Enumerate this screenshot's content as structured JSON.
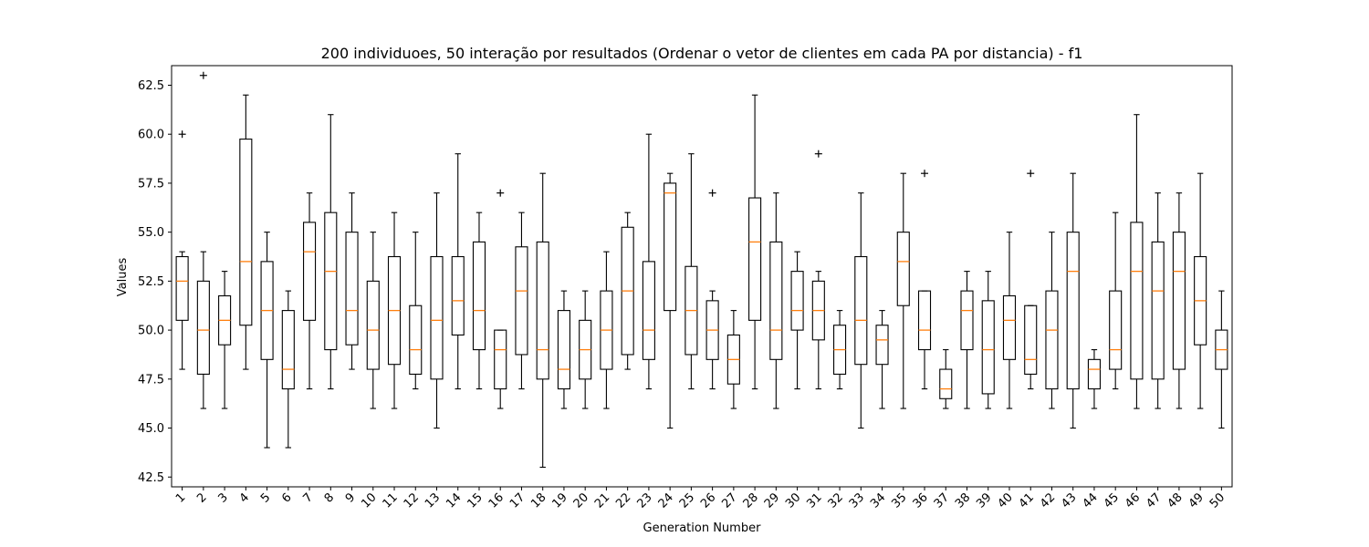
{
  "chart_data": {
    "type": "boxplot",
    "title": "200 individuoes, 50 interação por resultados (Ordenar o vetor de clientes em cada PA por distancia) - f1",
    "xlabel": "Generation Number",
    "ylabel": "Values",
    "ylim": [
      42,
      63.5
    ],
    "yticks": [
      42.5,
      45.0,
      47.5,
      50.0,
      52.5,
      55.0,
      57.5,
      60.0,
      62.5
    ],
    "ytick_labels": [
      "42.5",
      "45.0",
      "47.5",
      "50.0",
      "52.5",
      "55.0",
      "57.5",
      "60.0",
      "62.5"
    ],
    "grid": false,
    "colors": {
      "box": "#000000",
      "median": "#ff7f0e"
    },
    "categories": [
      "1",
      "2",
      "3",
      "4",
      "5",
      "6",
      "7",
      "8",
      "9",
      "10",
      "11",
      "12",
      "13",
      "14",
      "15",
      "16",
      "17",
      "18",
      "19",
      "20",
      "21",
      "22",
      "23",
      "24",
      "25",
      "26",
      "27",
      "28",
      "29",
      "30",
      "31",
      "32",
      "33",
      "34",
      "35",
      "36",
      "37",
      "38",
      "39",
      "40",
      "41",
      "42",
      "43",
      "44",
      "45",
      "46",
      "47",
      "48",
      "49",
      "50"
    ],
    "boxes": [
      {
        "x": "1",
        "whislo": 48,
        "q1": 50.5,
        "med": 52.5,
        "q3": 53.75,
        "whishi": 54,
        "fliers": [
          60
        ]
      },
      {
        "x": "2",
        "whislo": 46,
        "q1": 47.75,
        "med": 50,
        "q3": 52.5,
        "whishi": 54,
        "fliers": [
          63
        ]
      },
      {
        "x": "3",
        "whislo": 46,
        "q1": 49.25,
        "med": 50.5,
        "q3": 51.75,
        "whishi": 53,
        "fliers": []
      },
      {
        "x": "4",
        "whislo": 48,
        "q1": 50.25,
        "med": 53.5,
        "q3": 59.75,
        "whishi": 62,
        "fliers": []
      },
      {
        "x": "5",
        "whislo": 44,
        "q1": 48.5,
        "med": 51,
        "q3": 53.5,
        "whishi": 55,
        "fliers": []
      },
      {
        "x": "6",
        "whislo": 44,
        "q1": 47,
        "med": 48,
        "q3": 51,
        "whishi": 52,
        "fliers": []
      },
      {
        "x": "7",
        "whislo": 47,
        "q1": 50.5,
        "med": 54,
        "q3": 55.5,
        "whishi": 57,
        "fliers": []
      },
      {
        "x": "8",
        "whislo": 47,
        "q1": 49,
        "med": 53,
        "q3": 56,
        "whishi": 61,
        "fliers": []
      },
      {
        "x": "9",
        "whislo": 48,
        "q1": 49.25,
        "med": 51,
        "q3": 55,
        "whishi": 57,
        "fliers": []
      },
      {
        "x": "10",
        "whislo": 46,
        "q1": 48,
        "med": 50,
        "q3": 52.5,
        "whishi": 55,
        "fliers": []
      },
      {
        "x": "11",
        "whislo": 46,
        "q1": 48.25,
        "med": 51,
        "q3": 53.75,
        "whishi": 56,
        "fliers": []
      },
      {
        "x": "12",
        "whislo": 47,
        "q1": 47.75,
        "med": 49,
        "q3": 51.25,
        "whishi": 55,
        "fliers": []
      },
      {
        "x": "13",
        "whislo": 45,
        "q1": 47.5,
        "med": 50.5,
        "q3": 53.75,
        "whishi": 57,
        "fliers": []
      },
      {
        "x": "14",
        "whislo": 47,
        "q1": 49.75,
        "med": 51.5,
        "q3": 53.75,
        "whishi": 59,
        "fliers": []
      },
      {
        "x": "15",
        "whislo": 47,
        "q1": 49,
        "med": 51,
        "q3": 54.5,
        "whishi": 56,
        "fliers": []
      },
      {
        "x": "16",
        "whislo": 46,
        "q1": 47,
        "med": 49,
        "q3": 50,
        "whishi": 50,
        "fliers": [
          57
        ]
      },
      {
        "x": "17",
        "whislo": 47,
        "q1": 48.75,
        "med": 52,
        "q3": 54.25,
        "whishi": 56,
        "fliers": []
      },
      {
        "x": "18",
        "whislo": 43,
        "q1": 47.5,
        "med": 49,
        "q3": 54.5,
        "whishi": 58,
        "fliers": []
      },
      {
        "x": "19",
        "whislo": 46,
        "q1": 47,
        "med": 48,
        "q3": 51,
        "whishi": 52,
        "fliers": []
      },
      {
        "x": "20",
        "whislo": 46,
        "q1": 47.5,
        "med": 49,
        "q3": 50.5,
        "whishi": 52,
        "fliers": []
      },
      {
        "x": "21",
        "whislo": 46,
        "q1": 48,
        "med": 50,
        "q3": 52,
        "whishi": 54,
        "fliers": []
      },
      {
        "x": "22",
        "whislo": 48,
        "q1": 48.75,
        "med": 52,
        "q3": 55.25,
        "whishi": 56,
        "fliers": []
      },
      {
        "x": "23",
        "whislo": 47,
        "q1": 48.5,
        "med": 50,
        "q3": 53.5,
        "whishi": 60,
        "fliers": []
      },
      {
        "x": "24",
        "whislo": 45,
        "q1": 51,
        "med": 57,
        "q3": 57.5,
        "whishi": 58,
        "fliers": []
      },
      {
        "x": "25",
        "whislo": 47,
        "q1": 48.75,
        "med": 51,
        "q3": 53.25,
        "whishi": 59,
        "fliers": []
      },
      {
        "x": "26",
        "whislo": 47,
        "q1": 48.5,
        "med": 50,
        "q3": 51.5,
        "whishi": 52,
        "fliers": [
          57
        ]
      },
      {
        "x": "27",
        "whislo": 46,
        "q1": 47.25,
        "med": 48.5,
        "q3": 49.75,
        "whishi": 51,
        "fliers": []
      },
      {
        "x": "28",
        "whislo": 47,
        "q1": 50.5,
        "med": 54.5,
        "q3": 56.75,
        "whishi": 62,
        "fliers": []
      },
      {
        "x": "29",
        "whislo": 46,
        "q1": 48.5,
        "med": 50,
        "q3": 54.5,
        "whishi": 57,
        "fliers": []
      },
      {
        "x": "30",
        "whislo": 47,
        "q1": 50,
        "med": 51,
        "q3": 53,
        "whishi": 54,
        "fliers": []
      },
      {
        "x": "31",
        "whislo": 47,
        "q1": 49.5,
        "med": 51,
        "q3": 52.5,
        "whishi": 53,
        "fliers": [
          59
        ]
      },
      {
        "x": "32",
        "whislo": 47,
        "q1": 47.75,
        "med": 49,
        "q3": 50.25,
        "whishi": 51,
        "fliers": []
      },
      {
        "x": "33",
        "whislo": 45,
        "q1": 48.25,
        "med": 50.5,
        "q3": 53.75,
        "whishi": 57,
        "fliers": []
      },
      {
        "x": "34",
        "whislo": 46,
        "q1": 48.25,
        "med": 49.5,
        "q3": 50.25,
        "whishi": 51,
        "fliers": []
      },
      {
        "x": "35",
        "whislo": 46,
        "q1": 51.25,
        "med": 53.5,
        "q3": 55,
        "whishi": 58,
        "fliers": []
      },
      {
        "x": "36",
        "whislo": 47,
        "q1": 49,
        "med": 50,
        "q3": 52,
        "whishi": 52,
        "fliers": [
          58
        ]
      },
      {
        "x": "37",
        "whislo": 46,
        "q1": 46.5,
        "med": 47,
        "q3": 48,
        "whishi": 49,
        "fliers": []
      },
      {
        "x": "38",
        "whislo": 46,
        "q1": 49,
        "med": 51,
        "q3": 52,
        "whishi": 53,
        "fliers": []
      },
      {
        "x": "39",
        "whislo": 46,
        "q1": 46.75,
        "med": 49,
        "q3": 51.5,
        "whishi": 53,
        "fliers": []
      },
      {
        "x": "40",
        "whislo": 46,
        "q1": 48.5,
        "med": 50.5,
        "q3": 51.75,
        "whishi": 55,
        "fliers": []
      },
      {
        "x": "41",
        "whislo": 47,
        "q1": 47.75,
        "med": 48.5,
        "q3": 51.25,
        "whishi": 51.25,
        "fliers": [
          58
        ]
      },
      {
        "x": "42",
        "whislo": 46,
        "q1": 47,
        "med": 50,
        "q3": 52,
        "whishi": 55,
        "fliers": []
      },
      {
        "x": "43",
        "whislo": 45,
        "q1": 47,
        "med": 53,
        "q3": 55,
        "whishi": 58,
        "fliers": []
      },
      {
        "x": "44",
        "whislo": 46,
        "q1": 47,
        "med": 48,
        "q3": 48.5,
        "whishi": 49,
        "fliers": []
      },
      {
        "x": "45",
        "whislo": 47,
        "q1": 48,
        "med": 49,
        "q3": 52,
        "whishi": 56,
        "fliers": []
      },
      {
        "x": "46",
        "whislo": 46,
        "q1": 47.5,
        "med": 53,
        "q3": 55.5,
        "whishi": 61,
        "fliers": []
      },
      {
        "x": "47",
        "whislo": 46,
        "q1": 47.5,
        "med": 52,
        "q3": 54.5,
        "whishi": 57,
        "fliers": []
      },
      {
        "x": "48",
        "whislo": 46,
        "q1": 48,
        "med": 53,
        "q3": 55,
        "whishi": 57,
        "fliers": []
      },
      {
        "x": "49",
        "whislo": 46,
        "q1": 49.25,
        "med": 51.5,
        "q3": 53.75,
        "whishi": 58,
        "fliers": []
      },
      {
        "x": "50",
        "whislo": 45,
        "q1": 48,
        "med": 49,
        "q3": 50,
        "whishi": 52,
        "fliers": []
      }
    ]
  }
}
